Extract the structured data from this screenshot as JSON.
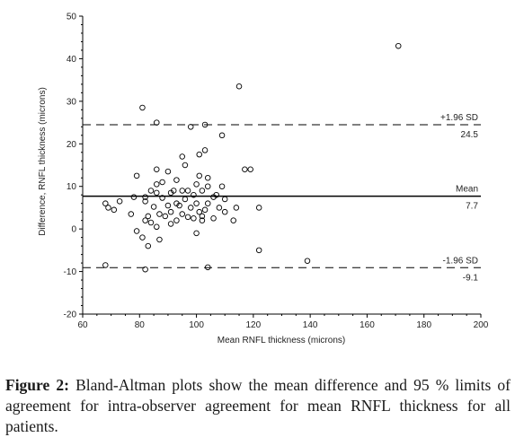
{
  "chart_data": {
    "type": "scatter",
    "xlabel": "Mean RNFL thickness (microns)",
    "ylabel": "Difference, RNFL thickness (microns)",
    "xlim": [
      60,
      200
    ],
    "ylim": [
      -20,
      50
    ],
    "xticks": [
      60,
      80,
      100,
      120,
      140,
      160,
      180,
      200
    ],
    "yticks": [
      -20,
      -10,
      0,
      10,
      20,
      30,
      40,
      50
    ],
    "grid": false,
    "series": [
      {
        "marker": "open-circle",
        "points": [
          [
            171,
            43
          ],
          [
            115,
            33.5
          ],
          [
            81,
            28.5
          ],
          [
            86,
            25
          ],
          [
            103,
            24.5
          ],
          [
            98,
            24
          ],
          [
            109,
            22
          ],
          [
            103,
            18.5
          ],
          [
            101,
            17.5
          ],
          [
            95,
            17
          ],
          [
            96,
            15
          ],
          [
            117,
            14
          ],
          [
            119,
            14
          ],
          [
            86,
            14
          ],
          [
            90,
            13.5
          ],
          [
            79,
            12.5
          ],
          [
            101,
            12.5
          ],
          [
            104,
            12
          ],
          [
            93,
            11.5
          ],
          [
            88,
            11
          ],
          [
            86,
            10.5
          ],
          [
            100,
            10.5
          ],
          [
            109,
            10
          ],
          [
            104,
            10
          ],
          [
            92,
            9
          ],
          [
            97,
            9
          ],
          [
            84,
            9
          ],
          [
            95,
            9
          ],
          [
            102,
            9
          ],
          [
            91,
            8.5
          ],
          [
            86,
            8.5
          ],
          [
            99,
            8
          ],
          [
            107,
            8
          ],
          [
            78,
            7.5
          ],
          [
            82,
            7.5
          ],
          [
            106,
            7.5
          ],
          [
            88,
            7.3
          ],
          [
            96,
            7
          ],
          [
            110,
            7
          ],
          [
            73,
            6.5
          ],
          [
            82,
            6.5
          ],
          [
            93,
            6
          ],
          [
            100,
            6
          ],
          [
            104,
            6
          ],
          [
            68,
            6
          ],
          [
            90,
            5.5
          ],
          [
            94,
            5.5
          ],
          [
            69,
            5
          ],
          [
            85,
            5.2
          ],
          [
            98,
            5
          ],
          [
            108,
            5
          ],
          [
            114,
            5
          ],
          [
            122,
            5
          ],
          [
            103,
            4.5
          ],
          [
            71,
            4.5
          ],
          [
            91,
            4
          ],
          [
            101,
            4
          ],
          [
            110,
            4
          ],
          [
            77,
            3.5
          ],
          [
            87,
            3.5
          ],
          [
            95,
            3.5
          ],
          [
            102,
            3
          ],
          [
            83,
            3
          ],
          [
            89,
            3
          ],
          [
            97,
            2.8
          ],
          [
            99,
            2.5
          ],
          [
            106,
            2.5
          ],
          [
            82,
            2
          ],
          [
            93,
            2
          ],
          [
            102,
            2
          ],
          [
            113,
            2
          ],
          [
            84,
            1.5
          ],
          [
            91,
            1.2
          ],
          [
            86,
            0.5
          ],
          [
            79,
            -0.5
          ],
          [
            100,
            -1
          ],
          [
            81,
            -2
          ],
          [
            87,
            -2.5
          ],
          [
            83,
            -4
          ],
          [
            122,
            -5
          ],
          [
            139,
            -7.5
          ],
          [
            68,
            -8.5
          ],
          [
            104,
            -9
          ],
          [
            82,
            -9.5
          ]
        ]
      }
    ],
    "reference_lines": [
      {
        "role": "mean",
        "y": 7.7,
        "style": "solid",
        "label_top": "Mean",
        "label_bottom": "7.7"
      },
      {
        "role": "upper-limit",
        "y": 24.5,
        "style": "dashed",
        "label_top": "+1.96 SD",
        "label_bottom": "24.5"
      },
      {
        "role": "lower-limit",
        "y": -9.1,
        "style": "dashed",
        "label_top": "-1.96 SD",
        "label_bottom": "-9.1"
      }
    ]
  },
  "caption": {
    "lead": "Figure 2:",
    "text": " Bland-Altman plots show the mean difference and 95 % limits of agreement for intra-observer agreement for mean RNFL thickness for all patients."
  }
}
